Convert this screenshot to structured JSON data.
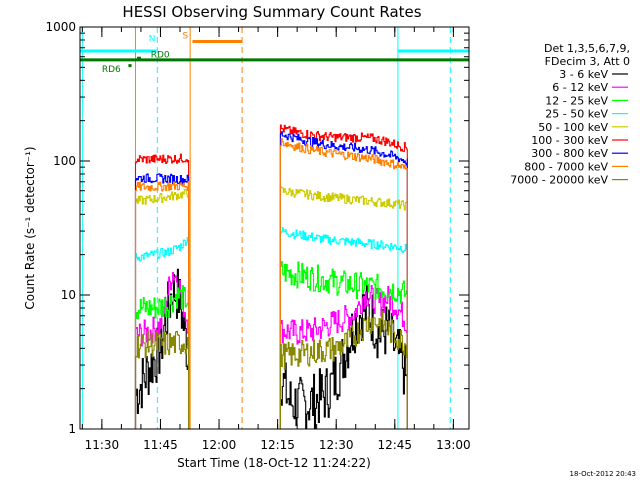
{
  "chart_data": {
    "type": "line",
    "title": "HESSI Observing Summary Count Rates",
    "xlabel": "Start Time (18-Oct-12 11:24:22)",
    "ylabel": "Count Rate (s⁻¹ detector⁻¹)",
    "x_unit": "minutes of day (UT)",
    "xlim": [
      684.4,
      784.0
    ],
    "ylim": [
      1,
      1000
    ],
    "yscale": "log",
    "x_ticks": [
      {
        "value": 690,
        "label": "11:30"
      },
      {
        "value": 705,
        "label": "11:45"
      },
      {
        "value": 720,
        "label": "12:00"
      },
      {
        "value": 735,
        "label": "12:15"
      },
      {
        "value": 750,
        "label": "12:30"
      },
      {
        "value": 765,
        "label": "12:45"
      },
      {
        "value": 780,
        "label": "13:00"
      }
    ],
    "y_ticks": [
      {
        "value": 1,
        "label": "1"
      },
      {
        "value": 10,
        "label": "10"
      },
      {
        "value": 100,
        "label": "100"
      },
      {
        "value": 1000,
        "label": "1000"
      }
    ],
    "legend": {
      "position": "right",
      "header": [
        "Det 1,3,5,6,7,9,",
        "FDecim 3, Att 0"
      ]
    },
    "segments": [
      [
        698.6,
        712.2
      ],
      [
        735.7,
        768.2
      ]
    ],
    "series": [
      {
        "name": "3 - 6 keV",
        "color": "#000000",
        "seg1": {
          "x": [
            698.6,
            701,
            703,
            705,
            706,
            707,
            708,
            709.5,
            710.5,
            711.5,
            712.2
          ],
          "y": [
            1.8,
            2.5,
            3.2,
            4,
            6,
            8,
            11,
            10,
            7,
            4.5,
            3
          ]
        },
        "seg2": {
          "x": [
            735.7,
            738,
            741,
            744,
            747,
            749,
            751,
            753,
            755,
            757,
            759,
            761,
            763,
            765,
            767,
            768.2
          ],
          "y": [
            2.5,
            1.6,
            1.5,
            1.6,
            1.8,
            2.2,
            3,
            4.5,
            6.5,
            8,
            7,
            5,
            5.5,
            4,
            3,
            2
          ]
        }
      },
      {
        "name": "6 - 12 keV",
        "color": "#ff00ff",
        "seg1": {
          "x": [
            698.6,
            701,
            703,
            705,
            706,
            707,
            708,
            709.5,
            710.5,
            711.5,
            712.2
          ],
          "y": [
            5,
            5.2,
            5.5,
            6,
            8,
            11,
            15,
            13,
            9,
            7,
            6
          ]
        },
        "seg2": {
          "x": [
            735.7,
            740,
            745,
            748,
            751,
            754,
            756,
            757,
            758,
            759,
            760,
            761,
            763,
            765,
            767,
            768.2
          ],
          "y": [
            5.5,
            5.2,
            5.5,
            6,
            6.5,
            7,
            8.5,
            10,
            10,
            9.5,
            9,
            8.5,
            9.5,
            8.5,
            7,
            6
          ]
        }
      },
      {
        "name": "12 - 25 keV",
        "color": "#00ff00",
        "seg1": {
          "x": [
            698.6,
            703,
            707,
            709,
            710.5,
            712.2
          ],
          "y": [
            8,
            8,
            8.5,
            10,
            9.5,
            9
          ]
        },
        "seg2": {
          "x": [
            735.7,
            741,
            747,
            753,
            759,
            765,
            768.2
          ],
          "y": [
            15,
            14,
            13,
            12,
            11.5,
            11,
            10
          ]
        }
      },
      {
        "name": "25 - 50 keV",
        "color": "#00ffff",
        "seg1": {
          "x": [
            698.6,
            703,
            707,
            710,
            712.2
          ],
          "y": [
            19,
            20,
            21,
            23,
            27
          ]
        },
        "seg2": {
          "x": [
            735.7,
            741,
            747,
            753,
            759,
            765,
            768.2
          ],
          "y": [
            30,
            28,
            26,
            25,
            24,
            23,
            22
          ]
        }
      },
      {
        "name": "50 - 100 keV",
        "color": "#cccc00",
        "seg1": {
          "x": [
            698.6,
            703,
            707,
            710,
            712.2
          ],
          "y": [
            50,
            52,
            54,
            56,
            58
          ]
        },
        "seg2": {
          "x": [
            735.7,
            741,
            747,
            753,
            759,
            765,
            768.2
          ],
          "y": [
            60,
            57,
            54,
            52,
            50,
            48,
            46
          ]
        }
      },
      {
        "name": "100 - 300 keV",
        "color": "#ff0000",
        "seg1": {
          "x": [
            698.6,
            703,
            707,
            710,
            712.2
          ],
          "y": [
            103,
            103,
            104,
            104,
            106
          ]
        },
        "seg2": {
          "x": [
            735.7,
            739,
            743,
            747,
            751,
            755,
            759,
            763,
            766,
            768.2
          ],
          "y": [
            175,
            165,
            158,
            152,
            150,
            150,
            148,
            140,
            130,
            125
          ]
        }
      },
      {
        "name": "300 - 800 keV",
        "color": "#0000ff",
        "seg1": {
          "x": [
            698.6,
            703,
            707,
            710,
            712.2
          ],
          "y": [
            75,
            74,
            74,
            73,
            73
          ]
        },
        "seg2": {
          "x": [
            735.7,
            739,
            743,
            747,
            751,
            755,
            759,
            763,
            766,
            768.2
          ],
          "y": [
            160,
            150,
            140,
            133,
            128,
            125,
            120,
            112,
            105,
            98
          ]
        }
      },
      {
        "name": "800 - 7000 keV",
        "color": "#ff8000",
        "seg1": {
          "x": [
            698.6,
            703,
            707,
            710,
            712.2
          ],
          "y": [
            64,
            64,
            65,
            65,
            65
          ]
        },
        "seg2": {
          "x": [
            735.7,
            739,
            743,
            747,
            751,
            755,
            759,
            763,
            766,
            768.2
          ],
          "y": [
            140,
            130,
            122,
            116,
            112,
            108,
            104,
            98,
            92,
            86
          ]
        }
      },
      {
        "name": "7000 - 20000 keV",
        "color": "#888800",
        "seg1": {
          "x": [
            698.6,
            703,
            707,
            710,
            712.2
          ],
          "y": [
            4.2,
            4.3,
            4.3,
            4.4,
            4.5
          ]
        },
        "seg2": {
          "x": [
            735.7,
            740,
            745,
            750,
            753,
            756,
            759,
            762,
            765,
            768.2
          ],
          "y": [
            3.5,
            3.6,
            3.8,
            4,
            4.5,
            5.5,
            6.5,
            6,
            5,
            4.2
          ]
        }
      }
    ],
    "vertical_lines": [
      {
        "x": 685.0,
        "color": "#00ffff",
        "style": "solid"
      },
      {
        "x": 698.6,
        "color": "#ff8000",
        "style": "solid"
      },
      {
        "x": 704.2,
        "color": "#00ffff",
        "style": "dashed"
      },
      {
        "x": 712.6,
        "color": "#ff8000",
        "style": "solid"
      },
      {
        "x": 725.9,
        "color": "#ff8000",
        "style": "dashed"
      },
      {
        "x": 765.8,
        "color": "#00ffff",
        "style": "solid"
      },
      {
        "x": 779.2,
        "color": "#00ffff",
        "style": "dashed"
      }
    ],
    "flag_bars": [
      {
        "label": "N",
        "color": "#00ffff",
        "x1": 684.4,
        "x2": 704.0,
        "y": 662,
        "label_x": 702.0,
        "label_y": 780,
        "width": 3
      },
      {
        "label": "N",
        "color": "#00ffff",
        "x1": 765.8,
        "x2": 784.0,
        "y": 662,
        "width": 3
      },
      {
        "label": "S",
        "color": "#ff8000",
        "x1": 713.2,
        "x2": 725.9,
        "y": 780,
        "label_x": 710.6,
        "label_y": 820,
        "width": 3
      },
      {
        "label": "",
        "color": "#007700",
        "x1": 684.4,
        "x2": 784.0,
        "y": 568,
        "width": 3
      },
      {
        "label": "RD0",
        "color": "#007700",
        "x1": 699.0,
        "x2": 700.0,
        "y": 585,
        "label_x": 702.5,
        "label_y": 590,
        "width": 3
      },
      {
        "label": "RD6",
        "color": "#007700",
        "x1": 696.8,
        "x2": 697.6,
        "y": 515,
        "label_x": 690.0,
        "label_y": 460,
        "width": 3
      }
    ],
    "timestamp": "18-Oct-2012 20:43"
  }
}
